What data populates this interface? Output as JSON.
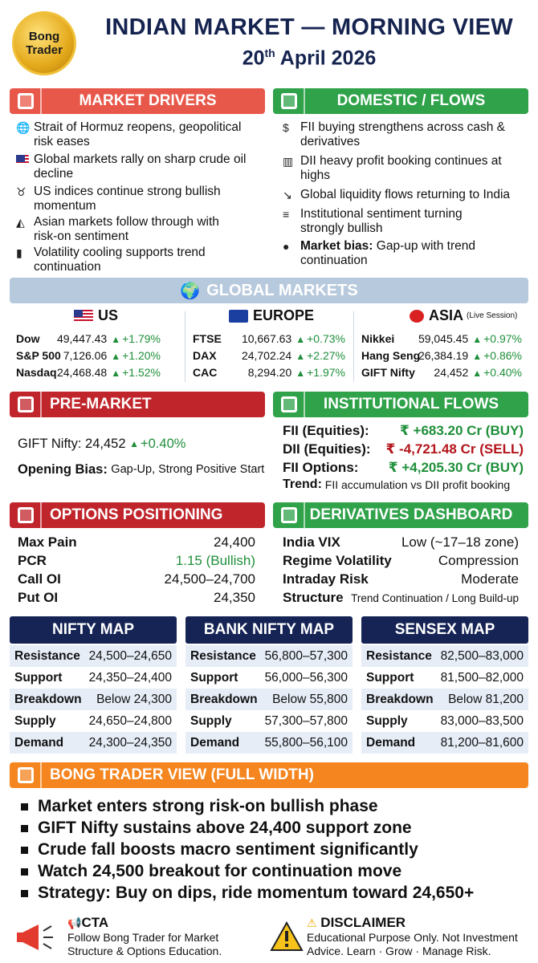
{
  "header": {
    "logo_line1": "Bong",
    "logo_line2": "Trader",
    "title": "INDIAN MARKET — MORNING VIEW",
    "date_day": "20",
    "date_suffix": "th",
    "date_rest": "April 2026"
  },
  "market_drivers": {
    "title": "MARKET DRIVERS",
    "items": [
      {
        "icon": "globe-icon",
        "l1": "Strait of Hormuz reopens, geopolitical",
        "l2": "risk eases"
      },
      {
        "icon": "us-flag-icon",
        "l1": "Global markets rally on sharp crude oil",
        "l2": "decline"
      },
      {
        "icon": "bull-icon",
        "l1": "US indices continue strong bullish",
        "l2": "momentum"
      },
      {
        "icon": "asia-map-icon",
        "l1": "Asian markets follow through with",
        "l2": "risk-on sentiment"
      },
      {
        "icon": "bar-chart-icon",
        "l1": "Volatility cooling supports trend",
        "l2": "continuation"
      }
    ]
  },
  "domestic_flows": {
    "title": "DOMESTIC / FLOWS",
    "items": [
      {
        "icon": "money-hand-icon",
        "l1": "FII buying strengthens across cash &",
        "l2": "derivatives"
      },
      {
        "icon": "building-icon",
        "l1": "DII heavy profit booking continues at",
        "l2": "highs"
      },
      {
        "icon": "trend-down-icon",
        "l1": "Global liquidity flows returning to India",
        "l2": ""
      },
      {
        "icon": "coins-icon",
        "l1": "Institutional sentiment turning",
        "l2": "strongly bullish"
      }
    ],
    "bias_label": "Market bias:",
    "bias_value": "Gap-up with trend",
    "bias_l2": "continuation"
  },
  "global_markets": {
    "title": "GLOBAL MARKETS",
    "us": {
      "label": "US",
      "rows": [
        {
          "name": "Dow",
          "value": "49,447.43",
          "change": "+1.79%"
        },
        {
          "name": "S&P 500",
          "value": "7,126.06",
          "change": "+1.20%"
        },
        {
          "name": "Nasdaq",
          "value": "24,468.48",
          "change": "+1.52%"
        }
      ]
    },
    "europe": {
      "label": "EUROPE",
      "rows": [
        {
          "name": "FTSE",
          "value": "10,667.63",
          "change": "+0.73%"
        },
        {
          "name": "DAX",
          "value": "24,702.24",
          "change": "+2.27%"
        },
        {
          "name": "CAC",
          "value": "8,294.20",
          "change": "+1.97%"
        }
      ]
    },
    "asia": {
      "label": "ASIA",
      "note": "(Live Session)",
      "rows": [
        {
          "name": "Nikkei",
          "value": "59,045.45",
          "change": "+0.97%"
        },
        {
          "name": "Hang Seng",
          "value": "26,384.19",
          "change": "+0.86%"
        },
        {
          "name": "GIFT Nifty",
          "value": "24,452",
          "change": "+0.40%"
        }
      ]
    }
  },
  "pre_market": {
    "title": "PRE-MARKET",
    "gift_label": "GIFT Nifty:",
    "gift_value": "24,452",
    "gift_change": "+0.40%",
    "bias_label": "Opening Bias:",
    "bias_value": "Gap-Up, Strong Positive Start"
  },
  "institutional_flows": {
    "title": "INSTITUTIONAL FLOWS",
    "rows": [
      {
        "label": "FII (Equities):",
        "value": "₹ +683.20 Cr (BUY)",
        "color": "#1f8f3a"
      },
      {
        "label": "DII (Equities):",
        "value": "₹ -4,721.48 Cr (SELL)",
        "color": "#b3141a"
      },
      {
        "label": "FII Options:",
        "value": "₹ +4,205.30 Cr (BUY)",
        "color": "#1f8f3a"
      }
    ],
    "trend_label": "Trend:",
    "trend_value": "FII accumulation vs DII profit booking"
  },
  "options_positioning": {
    "title": "OPTIONS POSITIONING",
    "rows": [
      {
        "label": "Max Pain",
        "value": "24,400"
      },
      {
        "label": "PCR",
        "value": "1.15 (Bullish)"
      },
      {
        "label": "Call OI",
        "value": "24,500–24,700"
      },
      {
        "label": "Put OI",
        "value": "24,350"
      }
    ]
  },
  "derivatives_dashboard": {
    "title": "DERIVATIVES DASHBOARD",
    "rows": [
      {
        "label": "India VIX",
        "value": "Low (~17–18 zone)"
      },
      {
        "label": "Regime Volatility",
        "value": "Compression"
      },
      {
        "label": "Intraday Risk",
        "value": "Moderate"
      },
      {
        "label": "Structure",
        "value": "Trend Continuation / Long Build-up"
      }
    ]
  },
  "maps": [
    {
      "title": "NIFTY MAP",
      "rows": [
        {
          "k": "Resistance",
          "v": "24,500–24,650"
        },
        {
          "k": "Support",
          "v": "24,350–24,400"
        },
        {
          "k": "Breakdown",
          "v": "Below 24,300"
        },
        {
          "k": "Supply",
          "v": "24,650–24,800"
        },
        {
          "k": "Demand",
          "v": "24,300–24,350"
        }
      ]
    },
    {
      "title": "BANK NIFTY MAP",
      "rows": [
        {
          "k": "Resistance",
          "v": "56,800–57,300"
        },
        {
          "k": "Support",
          "v": "56,000–56,300"
        },
        {
          "k": "Breakdown",
          "v": "Below 55,800"
        },
        {
          "k": "Supply",
          "v": "57,300–57,800"
        },
        {
          "k": "Demand",
          "v": "55,800–56,100"
        }
      ]
    },
    {
      "title": "SENSEX MAP",
      "rows": [
        {
          "k": "Resistance",
          "v": "82,500–83,000"
        },
        {
          "k": "Support",
          "v": "81,500–82,000"
        },
        {
          "k": "Breakdown",
          "v": "Below 81,200"
        },
        {
          "k": "Supply",
          "v": "83,000–83,500"
        },
        {
          "k": "Demand",
          "v": "81,200–81,600"
        }
      ]
    }
  ],
  "view": {
    "title": "BONG TRADER VIEW (FULL WIDTH)",
    "points": [
      "Market enters strong risk-on bullish phase",
      "GIFT Nifty sustains above 24,400 support zone",
      "Crude fall boosts macro sentiment significantly",
      "Watch 24,500 breakout for continuation move",
      "Strategy: Buy on dips, ride momentum toward 24,650+"
    ]
  },
  "footer": {
    "cta_title": "CTA",
    "cta_l1": "Follow Bong Trader for Market",
    "cta_l2": "Structure & Options Education.",
    "disc_title": "DISCLAIMER",
    "disc_l1": "Educational Purpose Only. Not Investment",
    "disc_l2": "Advice. Learn · Grow · Manage Risk."
  }
}
